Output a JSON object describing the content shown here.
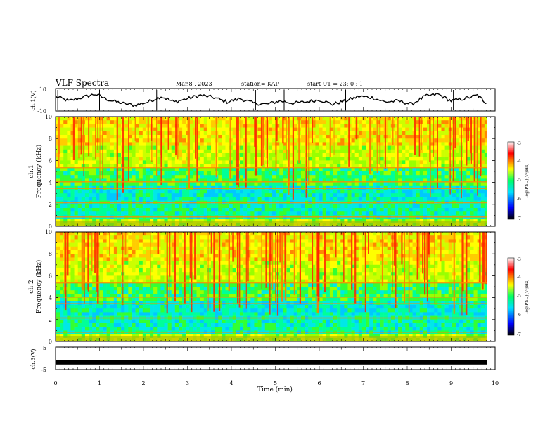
{
  "header": {
    "title": "VLF Spectra",
    "date": "Mar.8 , 2023",
    "station": "station= KAP",
    "start": "start UT = 23: 0 : 1"
  },
  "chart_data": [
    {
      "type": "line",
      "ylabel": "ch.1(V)",
      "ylim": [
        -10,
        10
      ],
      "ytick_labels": [
        "10",
        "-10"
      ],
      "xlim": [
        0,
        10
      ],
      "note": "waveform amplitude trace, approx samples (min, V)",
      "x": [
        0.0,
        0.3,
        0.6,
        0.9,
        1.2,
        1.5,
        1.8,
        2.1,
        2.4,
        2.7,
        3.0,
        3.3,
        3.6,
        3.9,
        4.2,
        4.5,
        4.8,
        5.1,
        5.4,
        5.7,
        6.0,
        6.3,
        6.6,
        6.9,
        7.2,
        7.5,
        7.8,
        8.1,
        8.4,
        8.7,
        9.0,
        9.3,
        9.6,
        9.8
      ],
      "y": [
        3,
        -1,
        2,
        5,
        0,
        -3,
        -5,
        -2,
        3,
        -2,
        1,
        4,
        2,
        -2,
        1,
        -3,
        -4,
        -1,
        -3,
        -2,
        0,
        -4,
        -1,
        3,
        2,
        -2,
        -1,
        -4,
        3,
        5,
        -1,
        1,
        4,
        -3
      ]
    },
    {
      "type": "heatmap",
      "ylabel": "ch.1\nFrequency (kHz)",
      "ylim": [
        0,
        10
      ],
      "ytick_labels": [
        "0",
        "2",
        "4",
        "6",
        "8",
        "10"
      ],
      "xlim": [
        0,
        10
      ],
      "colorbar": {
        "label": "log(PSD)(V²/Hz)",
        "range": [
          -7,
          -3
        ],
        "tick_labels": [
          "-3",
          "-4",
          "-5",
          "-6",
          "-7"
        ]
      }
    },
    {
      "type": "heatmap",
      "ylabel": "ch.2\nFrequency (kHz)",
      "ylim": [
        0,
        10
      ],
      "ytick_labels": [
        "0",
        "2",
        "4",
        "6",
        "8",
        "10"
      ],
      "xlim": [
        0,
        10
      ],
      "colorbar": {
        "label": "log(PSD)(V²/Hz)",
        "range": [
          -7,
          -3
        ],
        "tick_labels": [
          "-3",
          "-4",
          "-5",
          "-6",
          "-7"
        ]
      }
    },
    {
      "type": "line",
      "ylabel": "ch.3(V)",
      "ylim": [
        -5,
        5
      ],
      "ytick_labels": [
        "5",
        "-5"
      ],
      "xlim": [
        0,
        10
      ],
      "x": [
        0,
        9.8
      ],
      "y": [
        -1.8,
        -1.8
      ]
    }
  ],
  "xaxis": {
    "label": "Time (min)",
    "ticks": [
      0,
      1,
      2,
      3,
      4,
      5,
      6,
      7,
      8,
      9,
      10
    ],
    "tick_labels": [
      "0",
      "1",
      "2",
      "3",
      "4",
      "5",
      "6",
      "7",
      "8",
      "9",
      "10"
    ]
  }
}
